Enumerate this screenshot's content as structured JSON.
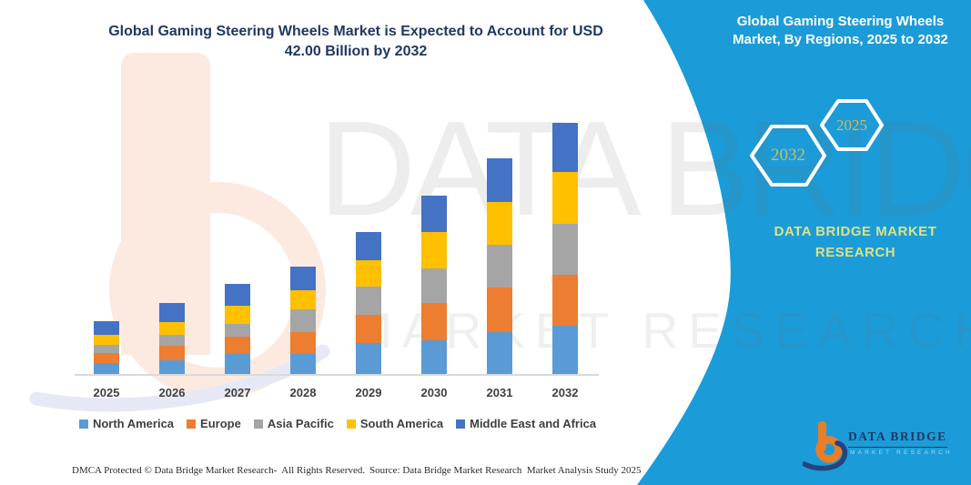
{
  "header": {
    "title": "Global Gaming Steering Wheels Market is Expected to Account for USD\n42.00 Billion by 2032"
  },
  "right_panel": {
    "heading": "Global Gaming Steering Wheels\nMarket, By Regions, 2025 to 2032",
    "hexagons": [
      {
        "label": "2032"
      },
      {
        "label": "2025"
      }
    ],
    "brand": "DATA BRIDGE MARKET\nRESEARCH",
    "background_color": "#1B9CD8",
    "heading_color": "#FFFFFF",
    "hexagon_year_color": "#C9BC62",
    "brand_text_color": "#DCE186"
  },
  "watermark": {
    "row1": "DATA BRIDGE",
    "row2": "MARKET RESEARCH"
  },
  "chart_data": {
    "type": "bar",
    "stacked": true,
    "title": "Global Gaming Steering Wheels Market is Expected to Account for USD 42.00 Billion by 2032",
    "xlabel": "",
    "ylabel": "",
    "unit_note": "USD Billion (values estimated from bar heights; 2032 total labeled as USD 42.00 Billion)",
    "categories": [
      "2025",
      "2026",
      "2027",
      "2028",
      "2029",
      "2030",
      "2031",
      "2032"
    ],
    "series": [
      {
        "name": "North America",
        "color": "#5B9BD5",
        "values": [
          1.9,
          2.3,
          3.3,
          3.4,
          5.2,
          5.7,
          7.0,
          8.1
        ]
      },
      {
        "name": "Europe",
        "color": "#ED7D31",
        "values": [
          1.6,
          2.4,
          2.9,
          3.6,
          4.7,
          6.1,
          7.4,
          8.5
        ]
      },
      {
        "name": "Asia Pacific",
        "color": "#A5A5A5",
        "values": [
          1.3,
          1.8,
          2.1,
          3.8,
          4.7,
          5.9,
          7.2,
          8.5
        ]
      },
      {
        "name": "South America",
        "color": "#FFC000",
        "values": [
          1.8,
          2.2,
          3.1,
          3.2,
          4.4,
          6.0,
          7.1,
          8.7
        ]
      },
      {
        "name": "Middle East and Africa",
        "color": "#4472C4",
        "values": [
          2.3,
          3.1,
          3.6,
          4.0,
          4.7,
          6.1,
          7.3,
          8.2
        ]
      }
    ],
    "totals_estimated": [
      8.9,
      11.8,
      15.0,
      18.0,
      23.7,
      29.8,
      36.0,
      42.0
    ],
    "ylim": [
      0,
      42
    ],
    "grid": false,
    "legend_position": "bottom",
    "axis_line_color": "#D9D9D9",
    "tick_label_color": "#404040"
  },
  "footer": {
    "left": "DMCA Protected © Data Bridge Market Research-  All Rights Reserved.",
    "right": "Source: Data Bridge Market Research  Market Analysis Study 2025"
  },
  "logo": {
    "wordmark": "DATA BRIDGE",
    "subtext": "MARKET RESEARCH",
    "b_color": "#E87E27",
    "swoosh_color": "#27427C"
  }
}
